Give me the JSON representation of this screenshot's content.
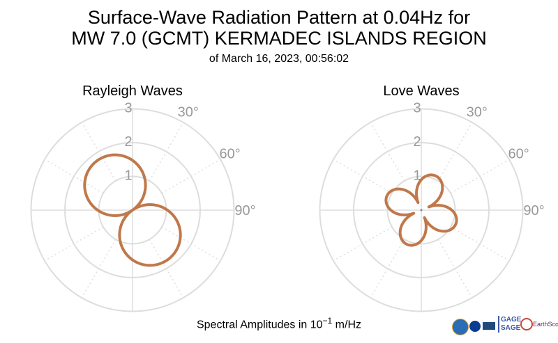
{
  "header": {
    "title_line1": "Surface-Wave Radiation Pattern at 0.04Hz for",
    "title_line2": "MW 7.0 (GCMT) KERMADEC ISLANDS REGION",
    "subtitle": "of March 16, 2023, 00:56:02"
  },
  "footer": {
    "units_prefix": "Spectral Amplitudes in 10",
    "units_exp": "−1",
    "units_suffix": " m/Hz"
  },
  "logos": {
    "gage_line1": "GAGE",
    "gage_line2": "SAGE",
    "earthscope": "EarthScope"
  },
  "colors": {
    "pattern": "#c0784a",
    "grid": "#dddddd",
    "tick_label": "#999999"
  },
  "chart_data": [
    {
      "type": "polar-line",
      "title": "Rayleigh Waves",
      "radial_ticks": [
        "1",
        "2",
        "3"
      ],
      "radial_range": [
        0,
        3
      ],
      "angle_ticks": [
        "30°",
        "60°",
        "90°"
      ],
      "angular_gridlines_deg": [
        0,
        30,
        60,
        90,
        120,
        150,
        180,
        210,
        240,
        270,
        300,
        330
      ],
      "pattern": {
        "form": "two-lobe",
        "peak_amplitude": 1.8,
        "lobe_azimuths_deg": [
          145,
          325
        ]
      }
    },
    {
      "type": "polar-line",
      "title": "Love Waves",
      "radial_ticks": [
        "1",
        "2",
        "3"
      ],
      "radial_range": [
        0,
        3
      ],
      "angle_ticks": [
        "30°",
        "60°",
        "90°"
      ],
      "angular_gridlines_deg": [
        0,
        30,
        60,
        90,
        120,
        150,
        180,
        210,
        240,
        270,
        300,
        330
      ],
      "pattern": {
        "form": "four-lobe",
        "peak_amplitude": 1.1,
        "lobe_azimuths_deg": [
          22,
          112,
          202,
          292
        ]
      }
    }
  ]
}
